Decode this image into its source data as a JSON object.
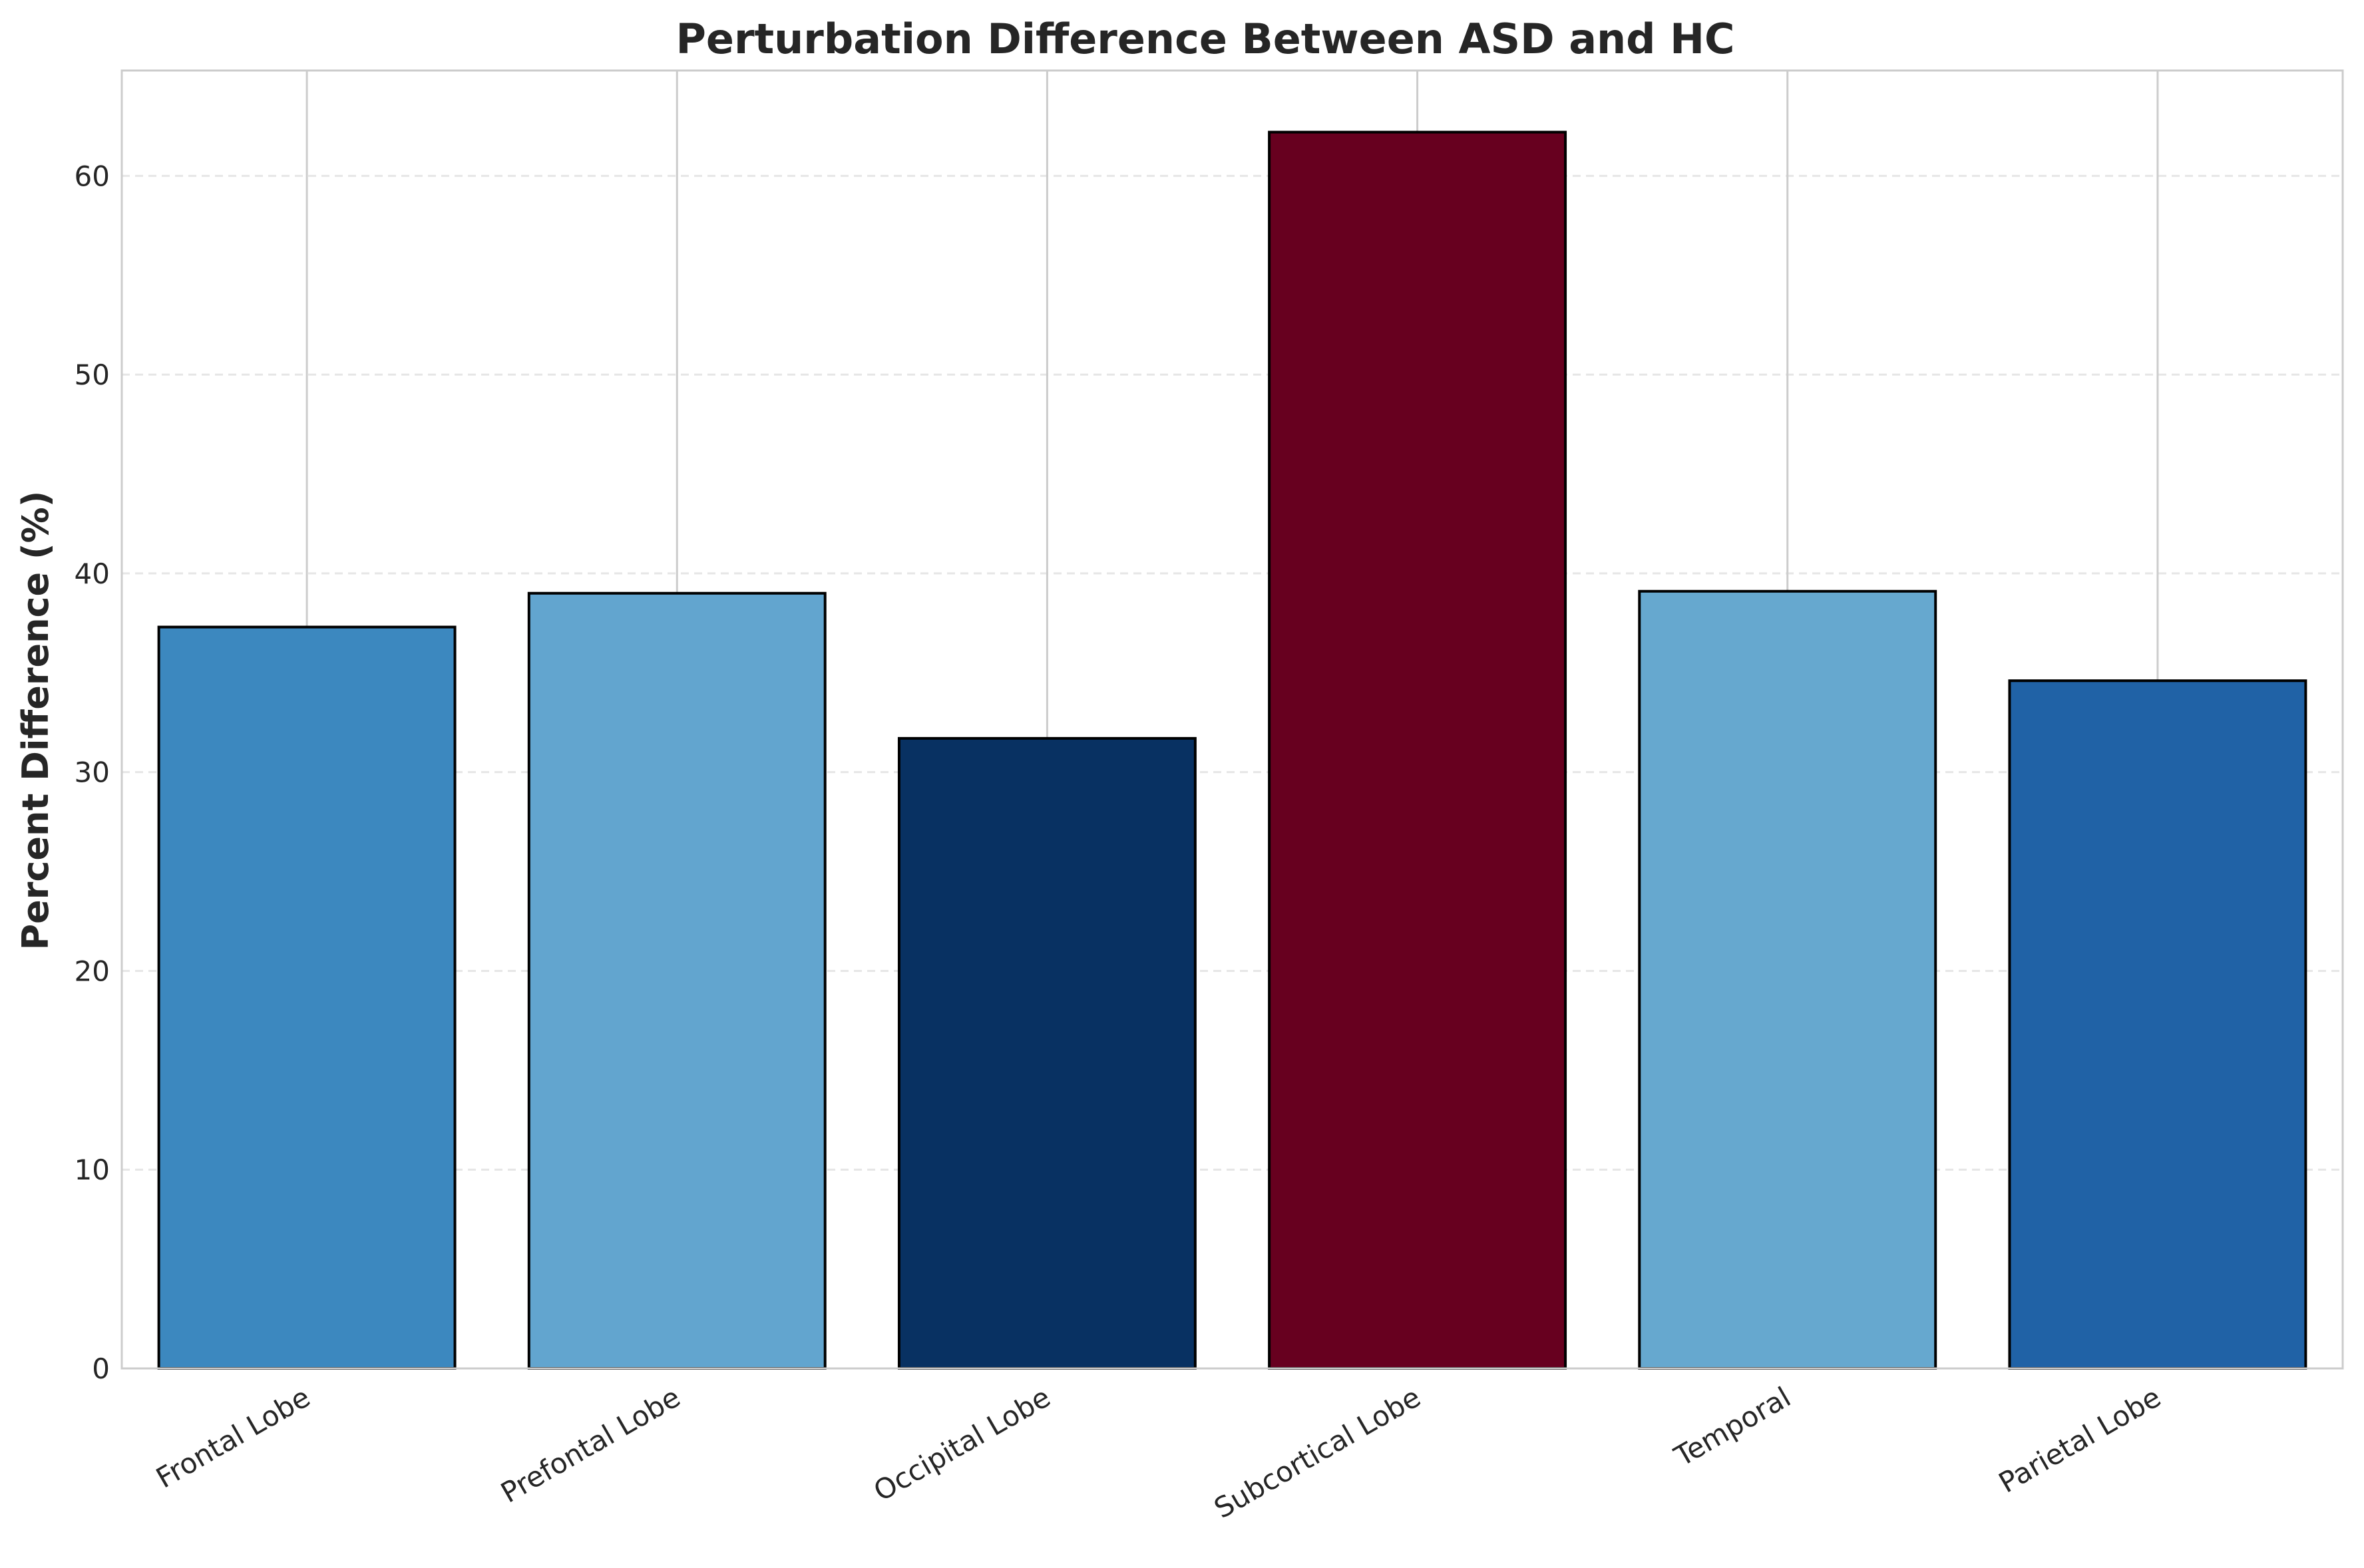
{
  "chart_data": {
    "type": "bar",
    "title": "Perturbation Difference Between ASD and HC",
    "xlabel": "",
    "ylabel": "Percent Difference (%)",
    "categories": [
      "Frontal Lobe",
      "Prefontal Lobe",
      "Occipital Lobe",
      "Subcortical Lobe",
      "Temporal",
      "Parietal Lobe"
    ],
    "values": [
      37.3,
      39.0,
      31.7,
      62.2,
      39.1,
      34.6
    ],
    "colors": [
      "#3c88bf",
      "#62a5cf",
      "#083162",
      "#67001f",
      "#66a8cf",
      "#2062a6"
    ],
    "ylim": [
      0,
      65.3
    ],
    "yticks": [
      0,
      10,
      20,
      30,
      40,
      50,
      60
    ],
    "grid": {
      "x": true,
      "y": true,
      "y_style": "dashed"
    },
    "edge_color": "#000000",
    "legend": "none"
  }
}
